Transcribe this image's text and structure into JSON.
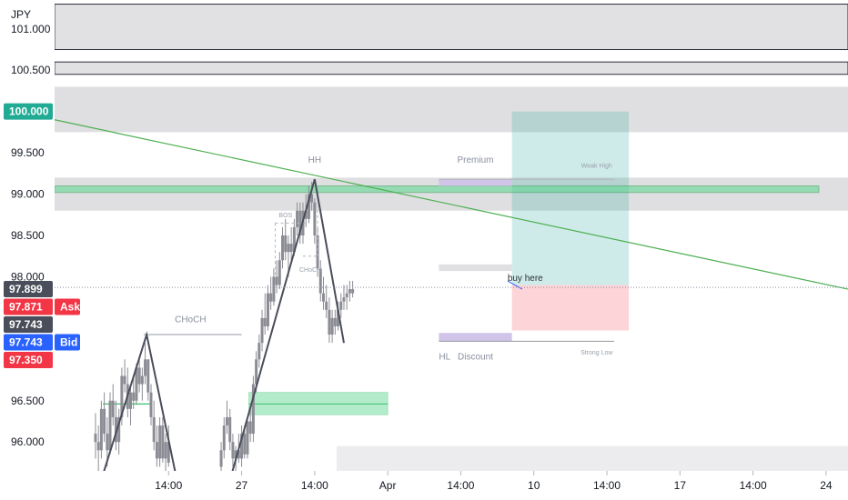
{
  "chart_data": {
    "type": "candlestick",
    "currency_label": "JPY",
    "y_ticks": [
      101.0,
      100.5,
      99.5,
      99.0,
      98.5,
      98.0,
      96.5,
      96.0
    ],
    "y_tick_labels": [
      "101.000",
      "100.500",
      "99.500",
      "99.000",
      "98.500",
      "98.000",
      "96.500",
      "96.000"
    ],
    "ylim": [
      95.65,
      101.35
    ],
    "x_ticks": [
      {
        "t": 0.5,
        "label": "14:00"
      },
      {
        "t": 1.0,
        "label": "27"
      },
      {
        "t": 1.5,
        "label": "14:00"
      },
      {
        "t": 2.0,
        "label": "Apr"
      },
      {
        "t": 2.5,
        "label": "14:00"
      },
      {
        "t": 3.0,
        "label": "10"
      },
      {
        "t": 3.5,
        "label": "14:00"
      },
      {
        "t": 4.0,
        "label": "17"
      },
      {
        "t": 4.5,
        "label": "14:00"
      },
      {
        "t": 5.0,
        "label": "24"
      }
    ],
    "xlim": [
      -0.28,
      5.15
    ],
    "price_badges": [
      {
        "label": "100.000",
        "value": 100.0,
        "color": "#22ab94",
        "tag": ""
      },
      {
        "label": "97.899",
        "value": 97.899,
        "color": "#4a4e5a",
        "tag": ""
      },
      {
        "label": "97.871",
        "value": 97.871,
        "color": "#f23645",
        "tag": "Ask"
      },
      {
        "label": "97.743",
        "value": 97.743,
        "color": "#4a4e5a",
        "tag": ""
      },
      {
        "label": "97.743",
        "value": 97.743,
        "color": "#2962ff",
        "tag": "Bid"
      },
      {
        "label": "97.350",
        "value": 97.35,
        "color": "#f23645",
        "tag": ""
      }
    ],
    "current_price": 97.871,
    "colors": {
      "candle": "#8c8c95",
      "trendline": "#4caf50",
      "zone_green": "#58d68d",
      "zone_gray": "#d9d9dc",
      "target": "#26a69a",
      "stop": "#f7525f"
    },
    "candles": [
      [
        0.0,
        96.1,
        96.35,
        95.8,
        96.0
      ],
      [
        0.02,
        96.0,
        96.2,
        95.6,
        95.9
      ],
      [
        0.04,
        95.9,
        96.5,
        95.8,
        96.4
      ],
      [
        0.06,
        96.4,
        96.6,
        96.0,
        96.1
      ],
      [
        0.08,
        96.1,
        96.3,
        95.7,
        95.9
      ],
      [
        0.1,
        95.9,
        96.6,
        95.85,
        96.5
      ],
      [
        0.12,
        96.5,
        96.7,
        96.2,
        96.3
      ],
      [
        0.14,
        96.3,
        96.5,
        95.9,
        96.0
      ],
      [
        0.16,
        96.0,
        96.4,
        95.85,
        96.3
      ],
      [
        0.18,
        96.3,
        96.9,
        96.2,
        96.8
      ],
      [
        0.2,
        96.8,
        97.0,
        96.6,
        96.7
      ],
      [
        0.22,
        96.7,
        96.9,
        96.3,
        96.4
      ],
      [
        0.24,
        96.4,
        96.7,
        96.2,
        96.6
      ],
      [
        0.26,
        96.6,
        96.8,
        96.4,
        96.5
      ],
      [
        0.28,
        96.5,
        96.95,
        96.45,
        96.9
      ],
      [
        0.3,
        96.9,
        97.0,
        96.6,
        96.7
      ],
      [
        0.32,
        96.7,
        96.9,
        96.5,
        96.8
      ],
      [
        0.34,
        96.8,
        97.2,
        96.7,
        97.0
      ],
      [
        0.36,
        97.0,
        97.0,
        96.5,
        96.6
      ],
      [
        0.38,
        96.6,
        96.7,
        96.2,
        96.3
      ],
      [
        0.4,
        96.3,
        96.5,
        95.9,
        96.0
      ],
      [
        0.42,
        96.0,
        96.2,
        95.7,
        95.8
      ],
      [
        0.44,
        95.8,
        96.3,
        95.7,
        96.2
      ],
      [
        0.46,
        96.2,
        96.3,
        95.75,
        95.8
      ],
      [
        0.48,
        95.8,
        96.1,
        95.65,
        96.0
      ],
      [
        0.5,
        96.0,
        96.2,
        95.7,
        95.75
      ],
      [
        0.86,
        95.7,
        96.0,
        95.65,
        95.9
      ],
      [
        0.88,
        95.9,
        96.3,
        95.8,
        96.2
      ],
      [
        0.9,
        96.2,
        96.5,
        96.1,
        96.3
      ],
      [
        0.92,
        96.3,
        96.4,
        95.9,
        96.0
      ],
      [
        0.94,
        96.0,
        96.1,
        95.7,
        95.8
      ],
      [
        0.96,
        95.8,
        95.95,
        95.65,
        95.9
      ],
      [
        0.98,
        95.9,
        96.1,
        95.75,
        95.8
      ],
      [
        1.0,
        95.8,
        96.2,
        95.7,
        96.1
      ],
      [
        1.02,
        96.1,
        96.2,
        95.8,
        95.85
      ],
      [
        1.04,
        95.85,
        96.3,
        95.8,
        96.25
      ],
      [
        1.06,
        96.25,
        96.4,
        96.0,
        96.1
      ],
      [
        1.08,
        96.1,
        96.8,
        96.0,
        96.7
      ],
      [
        1.1,
        96.7,
        97.1,
        96.6,
        97.0
      ],
      [
        1.12,
        97.0,
        97.3,
        96.9,
        97.2
      ],
      [
        1.14,
        97.2,
        97.6,
        97.1,
        97.5
      ],
      [
        1.16,
        97.5,
        97.8,
        97.3,
        97.4
      ],
      [
        1.18,
        97.4,
        97.9,
        97.35,
        97.8
      ],
      [
        1.2,
        97.8,
        98.0,
        97.6,
        97.7
      ],
      [
        1.22,
        97.7,
        98.1,
        97.65,
        98.0
      ],
      [
        1.24,
        98.0,
        98.2,
        97.8,
        97.9
      ],
      [
        1.26,
        97.9,
        98.3,
        97.85,
        98.2
      ],
      [
        1.28,
        98.2,
        98.6,
        98.1,
        98.5
      ],
      [
        1.3,
        98.5,
        98.7,
        98.2,
        98.3
      ],
      [
        1.32,
        98.3,
        98.5,
        98.0,
        98.4
      ],
      [
        1.34,
        98.4,
        98.6,
        98.2,
        98.3
      ],
      [
        1.36,
        98.3,
        98.7,
        98.25,
        98.6
      ],
      [
        1.38,
        98.6,
        98.9,
        98.5,
        98.8
      ],
      [
        1.4,
        98.8,
        98.9,
        98.4,
        98.5
      ],
      [
        1.42,
        98.5,
        98.9,
        98.4,
        98.8
      ],
      [
        1.44,
        98.8,
        99.0,
        98.6,
        98.7
      ],
      [
        1.46,
        98.7,
        99.1,
        98.65,
        99.0
      ],
      [
        1.48,
        99.0,
        99.15,
        98.8,
        98.9
      ],
      [
        1.5,
        98.9,
        98.95,
        98.4,
        98.5
      ],
      [
        1.52,
        98.5,
        98.6,
        98.0,
        98.1
      ],
      [
        1.54,
        98.1,
        98.2,
        97.7,
        97.8
      ],
      [
        1.56,
        97.8,
        98.0,
        97.6,
        97.7
      ],
      [
        1.58,
        97.7,
        97.9,
        97.5,
        97.6
      ],
      [
        1.6,
        97.6,
        97.75,
        97.2,
        97.3
      ],
      [
        1.62,
        97.3,
        97.6,
        97.2,
        97.5
      ],
      [
        1.64,
        97.5,
        97.6,
        97.3,
        97.4
      ],
      [
        1.66,
        97.4,
        97.7,
        97.35,
        97.6
      ],
      [
        1.68,
        97.6,
        97.8,
        97.5,
        97.7
      ],
      [
        1.7,
        97.7,
        97.9,
        97.6,
        97.75
      ],
      [
        1.72,
        97.75,
        97.9,
        97.6,
        97.8
      ],
      [
        1.74,
        97.8,
        97.95,
        97.7,
        97.85
      ],
      [
        1.76,
        97.85,
        97.95,
        97.75,
        97.8
      ]
    ]
  },
  "annotations": {
    "choch_left": "CHoCH",
    "bos": "BOS",
    "choch_right": "CHoCH",
    "hh": "HH",
    "hl": "HL",
    "premium": "Premium",
    "discount": "Discount",
    "weak_high": "Weak High",
    "strong_low": "Strong Low",
    "buy_here": "buy here"
  }
}
